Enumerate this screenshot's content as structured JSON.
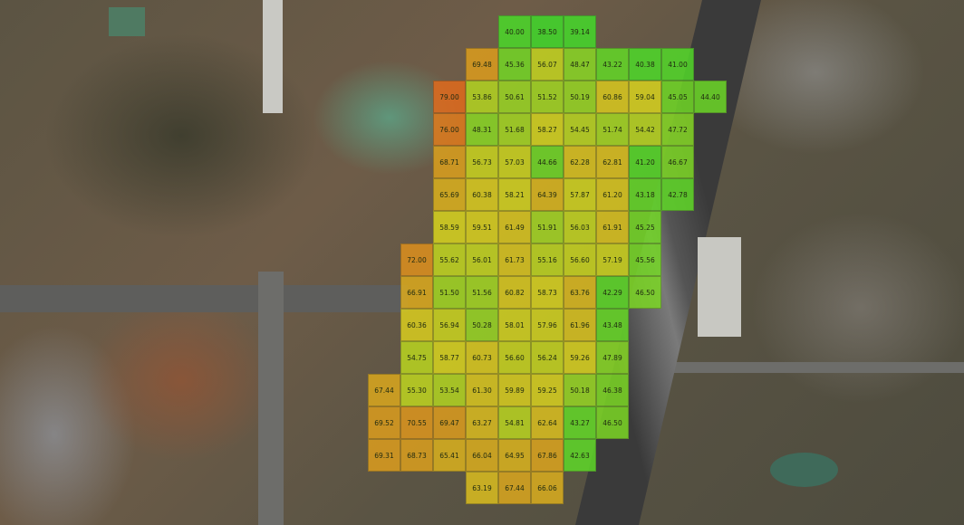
{
  "map": {
    "basemap": "satellite-imagery",
    "overlay": {
      "type": "heatmap-grid",
      "color_scale": {
        "low": "#3fd92a",
        "mid": "#d8d41e",
        "high": "#e06a1c",
        "min_value": 38.5,
        "max_value": 79.0
      },
      "columns": 12,
      "rows": [
        [
          null,
          null,
          null,
          null,
          "40.00",
          "38.50",
          "39.14",
          null,
          null,
          null,
          null,
          null
        ],
        [
          null,
          null,
          null,
          "69.48",
          "45.36",
          "56.07",
          "48.47",
          "43.22",
          "40.38",
          "41.00",
          null,
          null
        ],
        [
          null,
          null,
          "79.00",
          "53.86",
          "50.61",
          "51.52",
          "50.19",
          "60.86",
          "59.04",
          "45.05",
          "44.40",
          null
        ],
        [
          null,
          null,
          "76.00",
          "48.31",
          "51.68",
          "58.27",
          "54.45",
          "51.74",
          "54.42",
          "47.72",
          null,
          null
        ],
        [
          null,
          null,
          "68.71",
          "56.73",
          "57.03",
          "44.66",
          "62.28",
          "62.81",
          "41.20",
          "46.67",
          null,
          null
        ],
        [
          null,
          null,
          "65.69",
          "60.38",
          "58.21",
          "64.39",
          "57.87",
          "61.20",
          "43.18",
          "42.78",
          null,
          null
        ],
        [
          null,
          null,
          "58.59",
          "59.51",
          "61.49",
          "51.91",
          "56.03",
          "61.91",
          "45.25",
          null,
          null,
          null
        ],
        [
          null,
          "72.00",
          "55.62",
          "56.01",
          "61.73",
          "55.16",
          "56.60",
          "57.19",
          "45.56",
          null,
          null,
          null
        ],
        [
          null,
          "66.91",
          "51.50",
          "51.56",
          "60.82",
          "58.73",
          "63.76",
          "42.29",
          "46.50",
          null,
          null,
          null
        ],
        [
          null,
          "60.36",
          "56.94",
          "50.28",
          "58.01",
          "57.96",
          "61.96",
          "43.48",
          null,
          null,
          null,
          null
        ],
        [
          null,
          "54.75",
          "58.77",
          "60.73",
          "56.60",
          "56.24",
          "59.26",
          "47.89",
          null,
          null,
          null,
          null
        ],
        [
          "67.44",
          "55.30",
          "53.54",
          "61.30",
          "59.89",
          "59.25",
          "50.18",
          "46.38",
          null,
          null,
          null,
          null
        ],
        [
          "69.52",
          "70.55",
          "69.47",
          "63.27",
          "54.81",
          "62.64",
          "43.27",
          "46.50",
          null,
          null,
          null,
          null
        ],
        [
          "69.31",
          "68.73",
          "65.41",
          "66.04",
          "64.95",
          "67.86",
          "42.63",
          null,
          null,
          null,
          null,
          null
        ],
        [
          null,
          null,
          null,
          "63.19",
          "67.44",
          "66.06",
          null,
          null,
          null,
          null,
          null,
          null
        ]
      ]
    }
  }
}
